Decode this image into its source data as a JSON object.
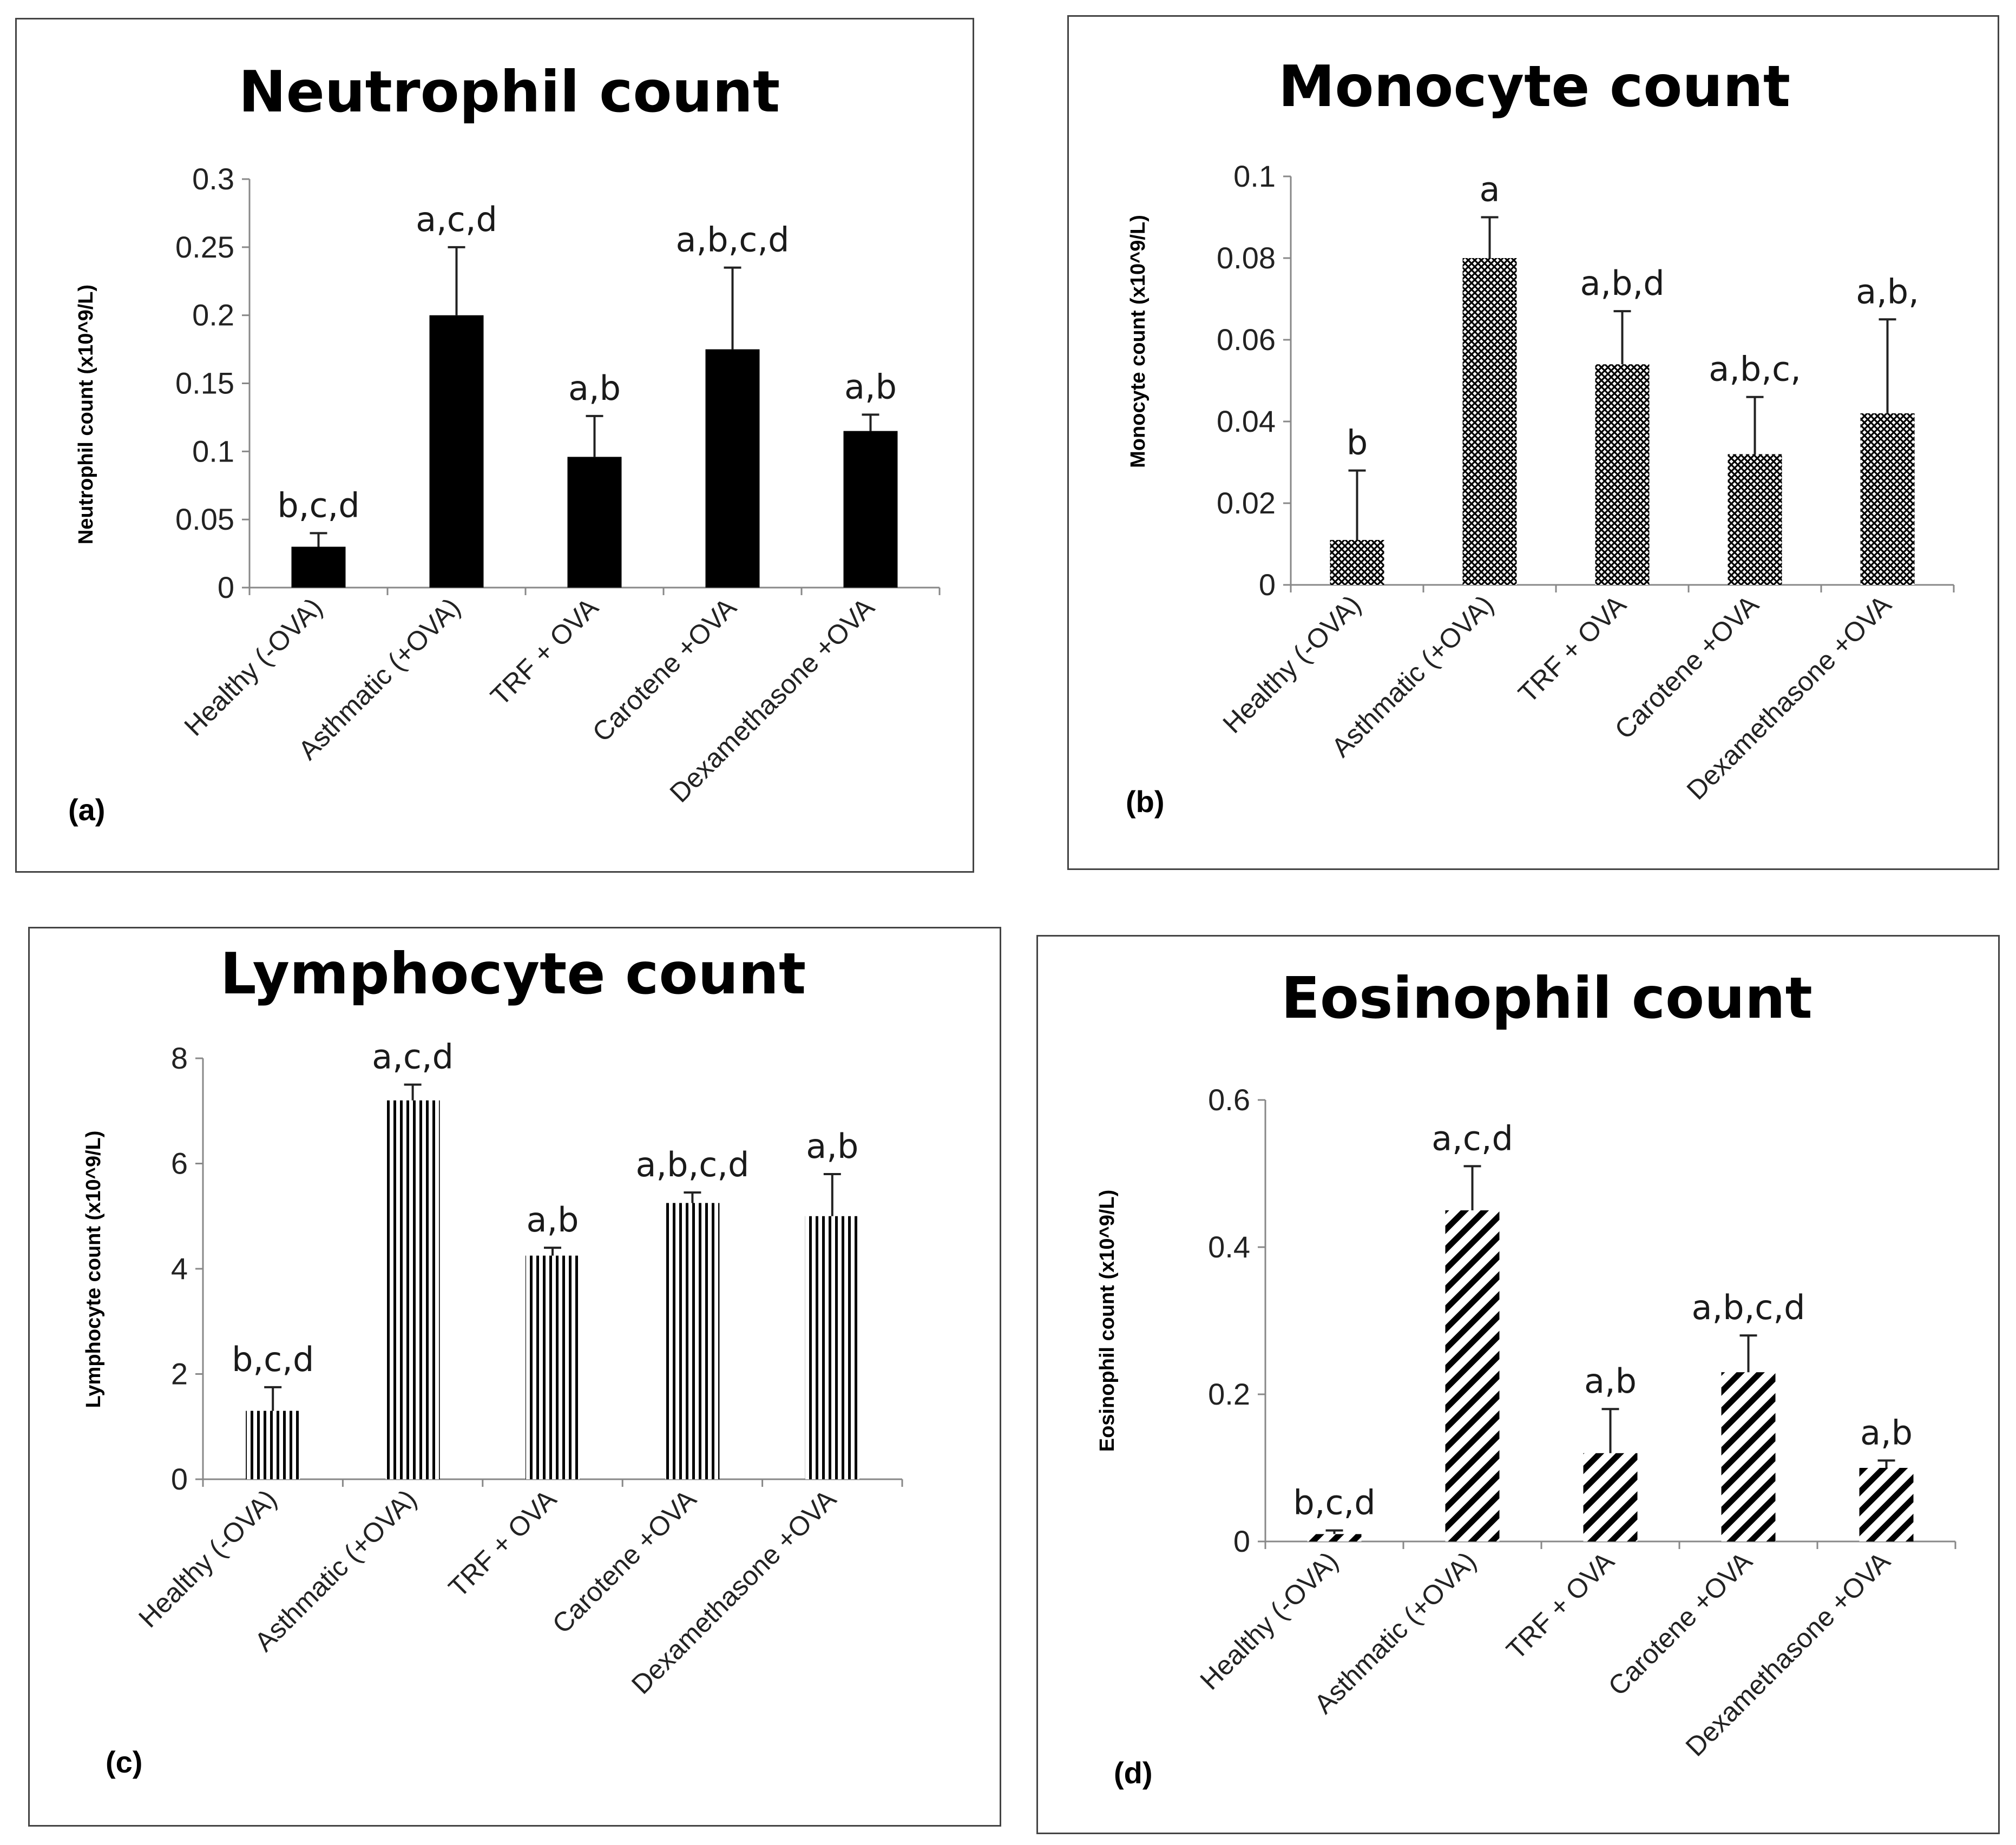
{
  "chart_data": [
    {
      "type": "bar",
      "panel_label": "(a)",
      "title": "Neutrophil count",
      "ylabel": "Neutrophil count (x10^9/L)",
      "categories": [
        "Healthy (-OVA)",
        "Asthmatic (+OVA)",
        "TRF + OVA",
        "Carotene +OVA",
        "Dexamethasone +OVA"
      ],
      "values": [
        0.03,
        0.2,
        0.096,
        0.175,
        0.115
      ],
      "errors": [
        0.01,
        0.05,
        0.03,
        0.06,
        0.012
      ],
      "annotations": [
        "b,c,d",
        "a,c,d",
        "a,b",
        "a,b,c,d",
        "a,b"
      ],
      "yticks": [
        "0",
        "0.05",
        "0.1",
        "0.15",
        "0.2",
        "0.25",
        "0.3"
      ],
      "ylim": [
        0,
        0.3
      ],
      "fill": "solid",
      "color": "#000000"
    },
    {
      "type": "bar",
      "panel_label": "(b)",
      "title": "Monocyte count",
      "ylabel": "Monocyte count (x10^9/L)",
      "categories": [
        "Healthy (-OVA)",
        "Asthmatic (+OVA)",
        "TRF + OVA",
        "Carotene +OVA",
        "Dexamethasone +OVA"
      ],
      "values": [
        0.011,
        0.08,
        0.054,
        0.032,
        0.042
      ],
      "errors": [
        0.017,
        0.01,
        0.013,
        0.014,
        0.023
      ],
      "annotations": [
        "b",
        "a",
        "a,b,d",
        "a,b,c,",
        "a,b,"
      ],
      "yticks": [
        "0",
        "0.02",
        "0.04",
        "0.06",
        "0.08",
        "0.1"
      ],
      "ylim": [
        0,
        0.1
      ],
      "fill": "crosshatch",
      "color": "#000000"
    },
    {
      "type": "bar",
      "panel_label": "(c)",
      "title": "Lymphocyte count",
      "ylabel": "Lymphocyte count (x10^9/L)",
      "categories": [
        "Healthy (-OVA)",
        "Asthmatic (+OVA)",
        "TRF + OVA",
        "Carotene +OVA",
        "Dexamethasone +OVA"
      ],
      "values": [
        1.3,
        7.2,
        4.25,
        5.25,
        5.0
      ],
      "errors": [
        0.45,
        0.3,
        0.15,
        0.2,
        0.8
      ],
      "annotations": [
        "b,c,d",
        "a,c,d",
        "a,b",
        "a,b,c,d",
        "a,b"
      ],
      "yticks": [
        "0",
        "2",
        "4",
        "6",
        "8"
      ],
      "ylim": [
        0,
        8
      ],
      "fill": "vertical-lines",
      "color": "#000000"
    },
    {
      "type": "bar",
      "panel_label": "(d)",
      "title": "Eosinophil count",
      "ylabel": "Eosinophil count (x10^9/L)",
      "categories": [
        "Healthy (-OVA)",
        "Asthmatic (+OVA)",
        "TRF + OVA",
        "Carotene +OVA",
        "Dexamethasone +OVA"
      ],
      "values": [
        0.01,
        0.45,
        0.12,
        0.23,
        0.1
      ],
      "errors": [
        0.005,
        0.06,
        0.06,
        0.05,
        0.01
      ],
      "annotations": [
        "b,c,d",
        "a,c,d",
        "a,b",
        "a,b,c,d",
        "a,b"
      ],
      "yticks": [
        "0",
        "0.2",
        "0.4",
        "0.6"
      ],
      "ylim": [
        0,
        0.6
      ],
      "fill": "diagonal",
      "color": "#000000"
    }
  ]
}
